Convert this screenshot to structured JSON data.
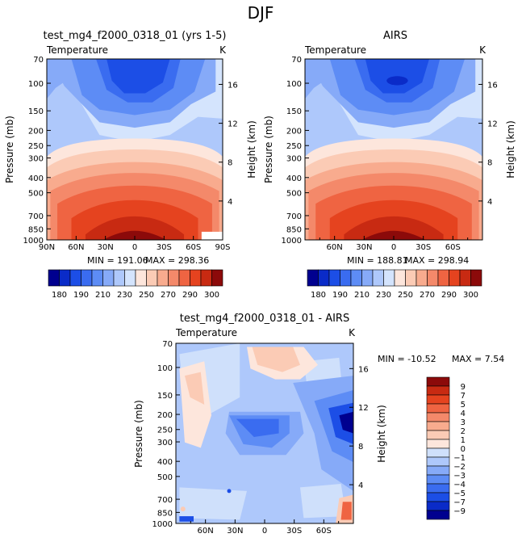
{
  "page": {
    "title": "DJF"
  },
  "colors": {
    "axis": "#000000",
    "frame_bg": "#ffffff",
    "abs_scale": [
      "#00008f",
      "#0a2bc8",
      "#1c4ee6",
      "#3a6cf0",
      "#5d8cf5",
      "#86aaf8",
      "#aec8fb",
      "#d4e4fd",
      "#fde6dc",
      "#fbcbb5",
      "#f8ab8e",
      "#f4896a",
      "#ef6442",
      "#e5431f",
      "#c82a12",
      "#8c0a0a"
    ],
    "diff_scale": [
      "#00008f",
      "#0a2bc8",
      "#1c4ee6",
      "#3a6cf0",
      "#5d8cf5",
      "#86aaf8",
      "#aec8fb",
      "#cfe0fb",
      "#fde6dc",
      "#fbcbb5",
      "#f8ab8e",
      "#f4896a",
      "#ef6442",
      "#e5431f",
      "#c82a12",
      "#8c0a0a"
    ]
  },
  "chart_data": [
    {
      "type": "contour",
      "id": "model",
      "title": "test_mg4_f2000_0318_01 (yrs 1-5)",
      "left_label": "Temperature",
      "units": "K",
      "ylabel": "Pressure (mb)",
      "y2label": "Height (km)",
      "x_ticks": [
        "90N",
        "60N",
        "30N",
        "0",
        "30S",
        "60S",
        "90S"
      ],
      "p_ticks": [
        70,
        100,
        150,
        200,
        250,
        300,
        400,
        500,
        700,
        850,
        1000
      ],
      "height_ticks": [
        4,
        8,
        12,
        16
      ],
      "stats": {
        "min_label": "MIN = 191.06",
        "max_label": "MAX = 298.36",
        "min": 191.06,
        "max": 298.36
      },
      "colorbar_labels": [
        "180",
        "190",
        "210",
        "230",
        "250",
        "270",
        "290",
        "300"
      ]
    },
    {
      "type": "contour",
      "id": "obs",
      "title": "AIRS",
      "left_label": "Temperature",
      "units": "K",
      "ylabel": "Pressure (mb)",
      "y2label": "Height (km)",
      "x_ticks": [
        "60N",
        "30N",
        "0",
        "30S",
        "60S"
      ],
      "p_ticks": [
        70,
        100,
        150,
        200,
        250,
        300,
        400,
        500,
        700,
        850,
        1000
      ],
      "height_ticks": [
        4,
        8,
        12,
        16
      ],
      "stats": {
        "min_label": "MIN = 188.81",
        "max_label": "MAX = 298.94",
        "min": 188.81,
        "max": 298.94
      },
      "colorbar_labels": [
        "180",
        "190",
        "210",
        "230",
        "250",
        "270",
        "290",
        "300"
      ]
    },
    {
      "type": "contour",
      "id": "diff",
      "title": "test_mg4_f2000_0318_01 - AIRS",
      "left_label": "Temperature",
      "units": "K",
      "ylabel": "Pressure (mb)",
      "y2label": "Height (km)",
      "x_ticks": [
        "60N",
        "30N",
        "0",
        "30S",
        "60S"
      ],
      "p_ticks": [
        70,
        100,
        150,
        200,
        250,
        300,
        400,
        500,
        700,
        850,
        1000
      ],
      "height_ticks": [
        4,
        8,
        12,
        16
      ],
      "stats": {
        "min_label": "MIN = -10.52",
        "max_label": "MAX =    7.54",
        "min": -10.52,
        "max": 7.54
      },
      "colorbar_labels": [
        "9",
        "7",
        "5",
        "4",
        "3",
        "2",
        "1",
        "0",
        "−1",
        "−2",
        "−3",
        "−4",
        "−5",
        "−7",
        "−9"
      ]
    }
  ]
}
